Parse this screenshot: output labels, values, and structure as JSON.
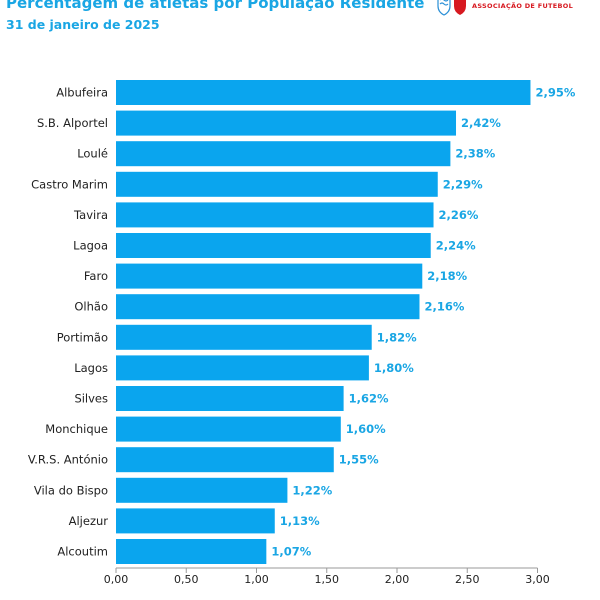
{
  "header": {
    "title": "Percentagem de atletas por População Residente",
    "subtitle": "31 de janeiro de 2025",
    "logo_text": "ASSOCIAÇÃO DE FUTEBOL"
  },
  "colors": {
    "bar": "#0aa5ee",
    "accent": "#1aa6e4",
    "logo_red": "#d71920",
    "logo_blue": "#2a8fd6"
  },
  "chart_data": {
    "type": "bar",
    "orientation": "horizontal",
    "categories": [
      "Albufeira",
      "S.B. Alportel",
      "Loulé",
      "Castro Marim",
      "Tavira",
      "Lagoa",
      "Faro",
      "Olhão",
      "Portimão",
      "Lagos",
      "Silves",
      "Monchique",
      "V.R.S. António",
      "Vila do Bispo",
      "Aljezur",
      "Alcoutim"
    ],
    "values": [
      2.95,
      2.42,
      2.38,
      2.29,
      2.26,
      2.24,
      2.18,
      2.16,
      1.82,
      1.8,
      1.62,
      1.6,
      1.55,
      1.22,
      1.13,
      1.07
    ],
    "value_labels": [
      "2,95%",
      "2,42%",
      "2,38%",
      "2,29%",
      "2,26%",
      "2,24%",
      "2,18%",
      "2,16%",
      "1,82%",
      "1,80%",
      "1,62%",
      "1,60%",
      "1,55%",
      "1,22%",
      "1,13%",
      "1,07%"
    ],
    "xlim": [
      0,
      3
    ],
    "x_ticks": [
      0,
      0.5,
      1.0,
      1.5,
      2.0,
      2.5,
      3.0
    ],
    "x_tick_labels": [
      "0,00",
      "0,50",
      "1,00",
      "1,50",
      "2,00",
      "2,50",
      "3,00"
    ],
    "grid": false,
    "legend": "none"
  }
}
